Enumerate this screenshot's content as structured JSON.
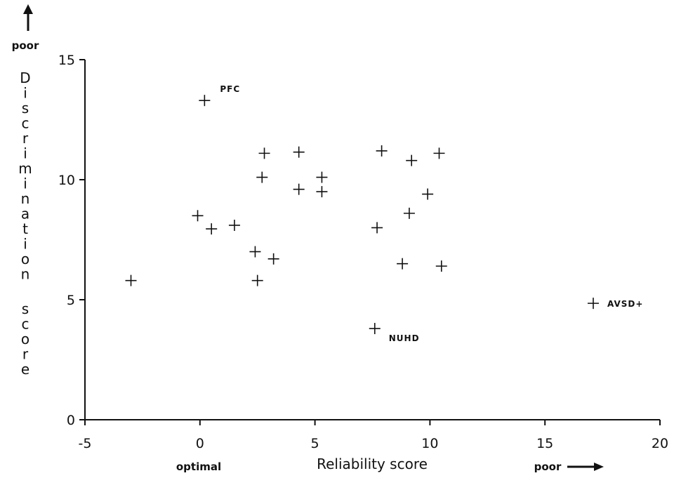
{
  "chart_data": {
    "type": "scatter",
    "title": "",
    "xlabel": "Reliability score",
    "ylabel": "Discrimination score",
    "xlim": [
      -5,
      20
    ],
    "ylim": [
      0,
      15
    ],
    "x_ticks": [
      "-5",
      "0",
      "5",
      "10",
      "15",
      "20"
    ],
    "y_ticks": [
      "0",
      "5",
      "10",
      "15"
    ],
    "x_direction_labels": {
      "left": "optimal",
      "right": "poor"
    },
    "y_direction_label": "poor",
    "grid": false,
    "marker": "plus",
    "points": [
      {
        "x": 0.2,
        "y": 13.3,
        "label": "PFC"
      },
      {
        "x": -3.0,
        "y": 5.8
      },
      {
        "x": -0.1,
        "y": 8.5
      },
      {
        "x": 0.5,
        "y": 7.95
      },
      {
        "x": 1.5,
        "y": 8.1
      },
      {
        "x": 2.4,
        "y": 7.0
      },
      {
        "x": 2.5,
        "y": 5.8
      },
      {
        "x": 2.7,
        "y": 10.1
      },
      {
        "x": 2.8,
        "y": 11.1
      },
      {
        "x": 3.2,
        "y": 6.7
      },
      {
        "x": 4.3,
        "y": 11.15
      },
      {
        "x": 4.3,
        "y": 9.6
      },
      {
        "x": 5.3,
        "y": 10.1
      },
      {
        "x": 5.3,
        "y": 9.5
      },
      {
        "x": 7.6,
        "y": 3.8,
        "label": "NUHD"
      },
      {
        "x": 7.7,
        "y": 8.0
      },
      {
        "x": 7.9,
        "y": 11.2
      },
      {
        "x": 8.8,
        "y": 6.5
      },
      {
        "x": 9.1,
        "y": 8.6
      },
      {
        "x": 9.2,
        "y": 10.8
      },
      {
        "x": 9.9,
        "y": 9.4
      },
      {
        "x": 10.4,
        "y": 11.1
      },
      {
        "x": 10.5,
        "y": 6.4
      },
      {
        "x": 17.1,
        "y": 4.85,
        "label": "AVSD+"
      }
    ]
  }
}
